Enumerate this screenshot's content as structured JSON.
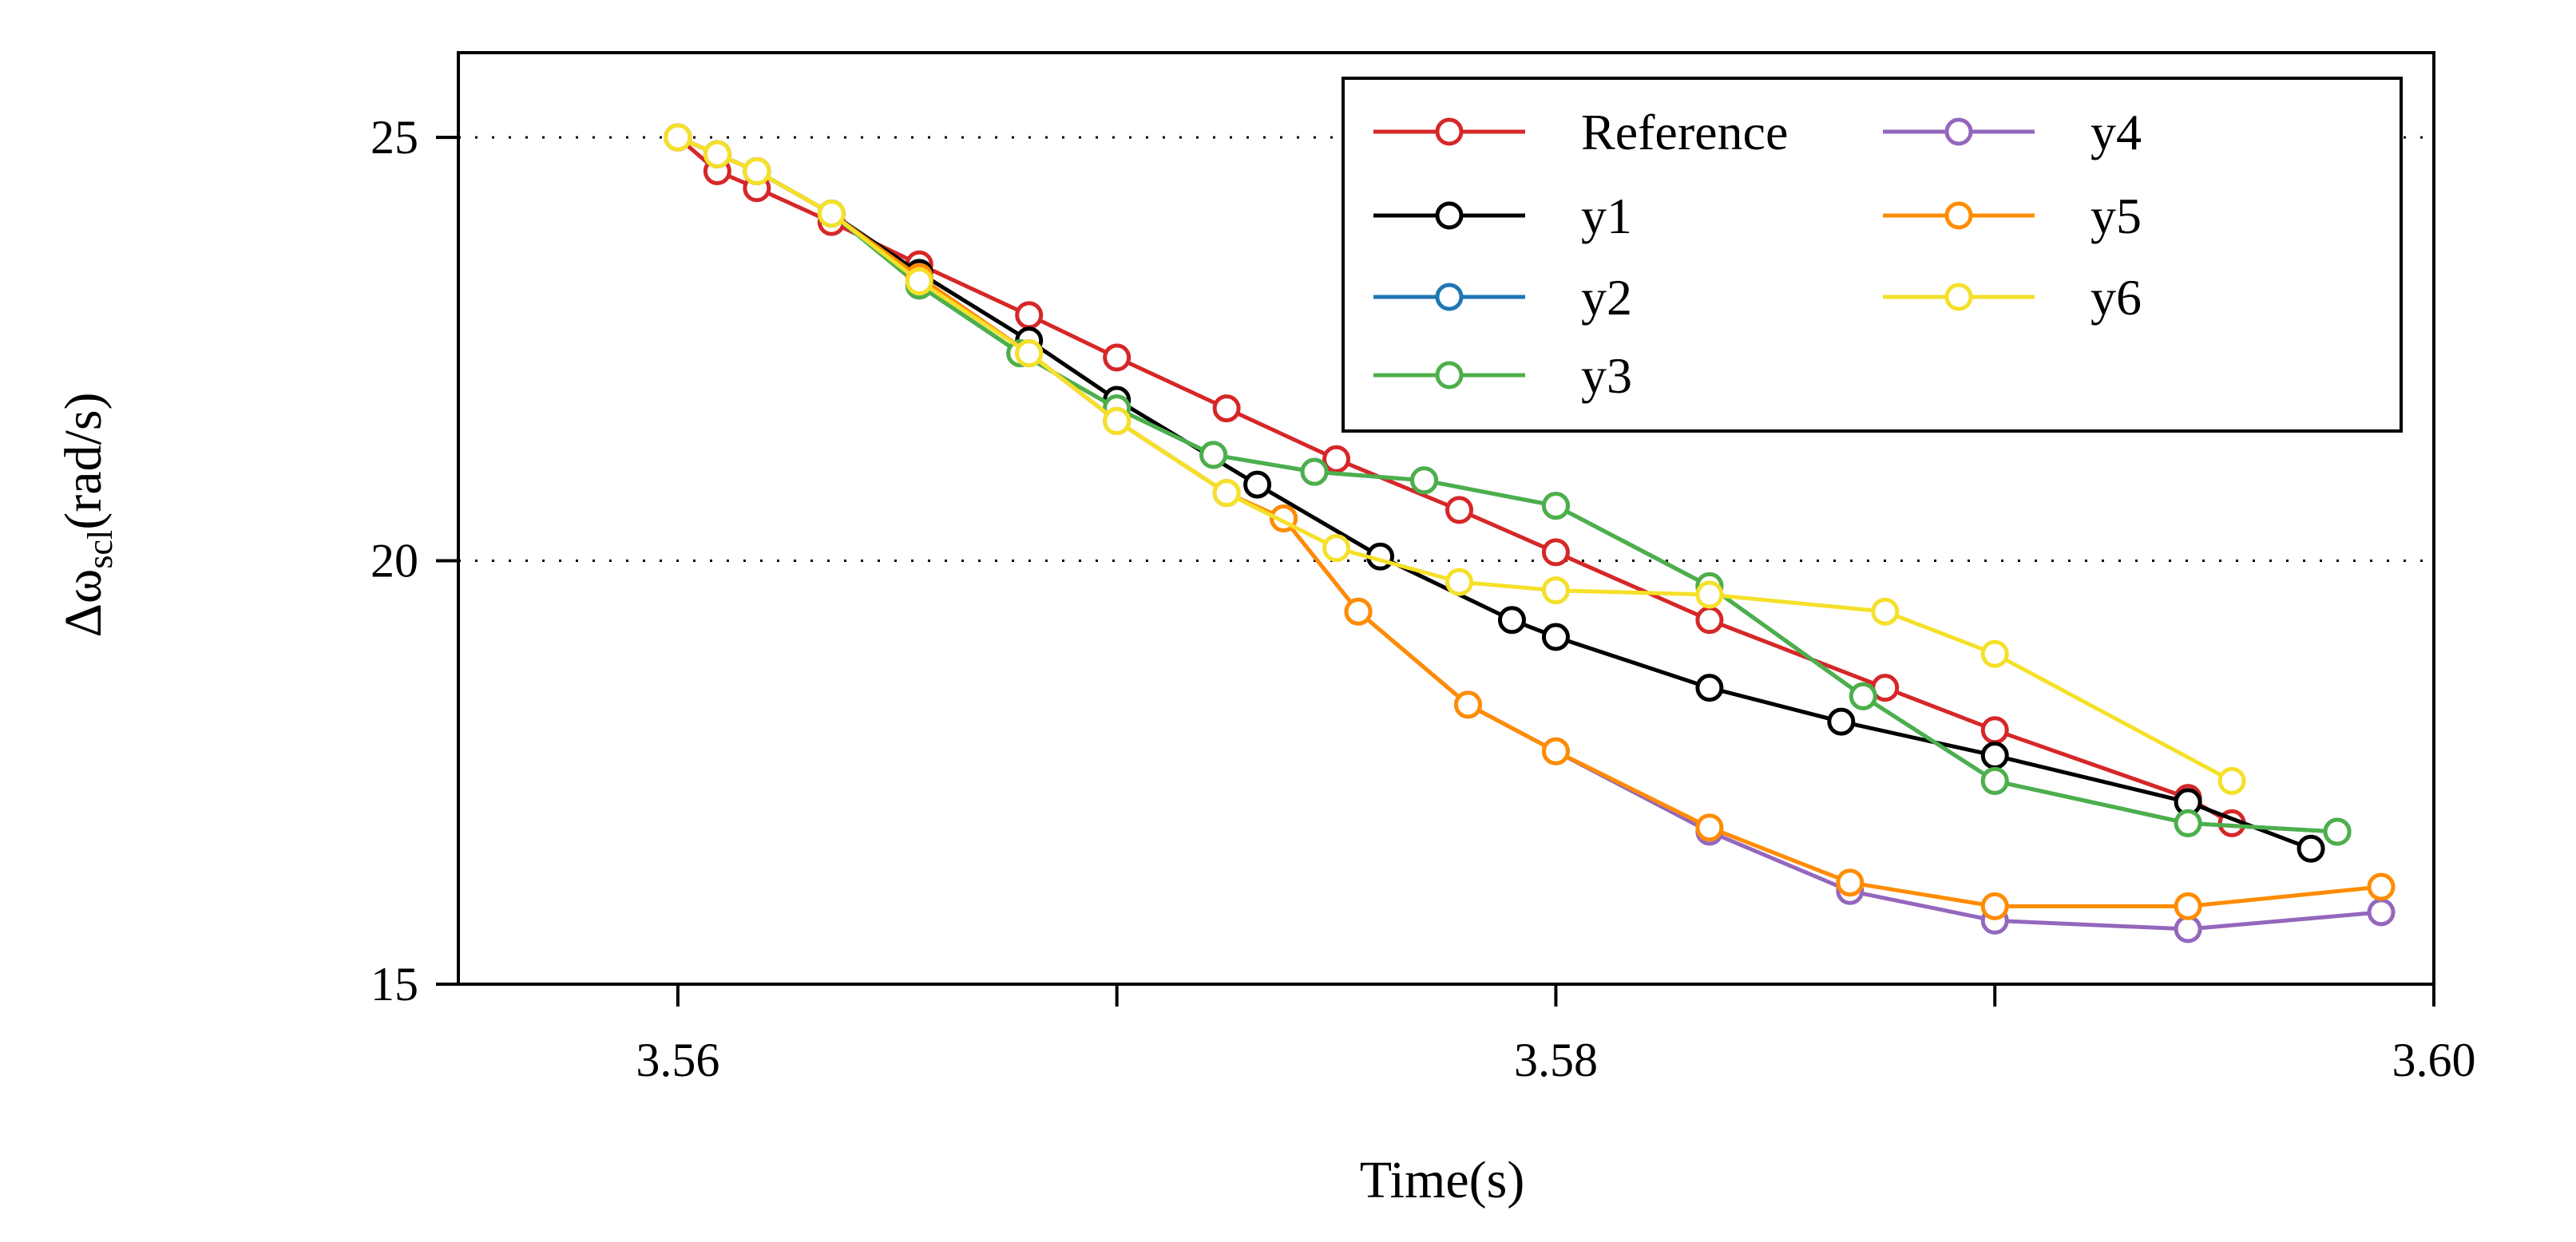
{
  "chart_data": {
    "type": "line",
    "title": "",
    "xlabel": "Time(s)",
    "ylabel": "Δω",
    "ylabel_sub": "scl",
    "ylabel_unit": "(rad/s)",
    "xlim": [
      3.555,
      3.6
    ],
    "ylim": [
      15,
      26
    ],
    "xticks": [
      3.56,
      3.58,
      3.6
    ],
    "xtick_labels": [
      "3.56",
      "3.58",
      "3.60"
    ],
    "yticks": [
      15,
      20,
      25
    ],
    "ytick_labels": [
      "15",
      "20",
      "25"
    ],
    "minor_xticks": [
      3.57,
      3.59
    ],
    "minor_yticks": [],
    "grid_lines_y": [
      20,
      25
    ],
    "legend_position": "top-right",
    "legend_columns": 2,
    "series": [
      {
        "name": "Reference",
        "color": "#d62728",
        "x": [
          3.56,
          3.5609,
          3.5618,
          3.5635,
          3.5655,
          3.568,
          3.57,
          3.5725,
          3.575,
          3.5778,
          3.58,
          3.5835,
          3.5875,
          3.59,
          3.5944,
          3.5954
        ],
        "y": [
          25.0,
          24.6,
          24.4,
          24.0,
          23.5,
          22.9,
          22.4,
          21.8,
          21.2,
          20.6,
          20.1,
          19.3,
          18.5,
          18.0,
          17.2,
          16.9
        ]
      },
      {
        "name": "y1",
        "color": "#000000",
        "x": [
          3.56,
          3.5609,
          3.5618,
          3.5635,
          3.5655,
          3.568,
          3.57,
          3.5732,
          3.576,
          3.579,
          3.58,
          3.5835,
          3.5865,
          3.59,
          3.5944,
          3.5972
        ],
        "y": [
          25.0,
          24.8,
          24.6,
          24.1,
          23.4,
          22.6,
          21.9,
          20.9,
          20.05,
          19.3,
          19.1,
          18.5,
          18.1,
          17.7,
          17.15,
          16.6
        ]
      },
      {
        "name": "y2",
        "color": "#1f77b4",
        "x": [
          3.56,
          3.5609,
          3.5618,
          3.5635,
          3.5655,
          3.5678,
          3.57,
          3.5722,
          3.5745,
          3.577,
          3.58,
          3.5835,
          3.587,
          3.59,
          3.5944,
          3.5978
        ],
        "y": [
          25.0,
          24.8,
          24.6,
          24.1,
          23.25,
          22.45,
          21.8,
          21.25,
          21.05,
          20.95,
          20.65,
          19.7,
          18.4,
          17.4,
          16.9,
          16.8
        ]
      },
      {
        "name": "y3",
        "color": "#4daf4a",
        "x": [
          3.56,
          3.5609,
          3.5618,
          3.5635,
          3.5655,
          3.5678,
          3.57,
          3.5722,
          3.5745,
          3.577,
          3.58,
          3.5835,
          3.587,
          3.59,
          3.5944,
          3.5978
        ],
        "y": [
          25.0,
          24.8,
          24.6,
          24.1,
          23.25,
          22.45,
          21.8,
          21.25,
          21.05,
          20.95,
          20.65,
          19.7,
          18.4,
          17.4,
          16.9,
          16.8
        ]
      },
      {
        "name": "y4",
        "color": "#9467bd",
        "x": [
          3.56,
          3.5609,
          3.5618,
          3.5635,
          3.5655,
          3.568,
          3.57,
          3.5725,
          3.5738,
          3.5755,
          3.578,
          3.58,
          3.5835,
          3.5867,
          3.59,
          3.5944,
          3.5988
        ],
        "y": [
          25.0,
          24.8,
          24.6,
          24.1,
          23.35,
          22.45,
          21.65,
          20.8,
          20.5,
          19.4,
          18.3,
          17.75,
          16.8,
          16.1,
          15.75,
          15.65,
          15.85
        ]
      },
      {
        "name": "y5",
        "color": "#ff8c00",
        "x": [
          3.56,
          3.5609,
          3.5618,
          3.5635,
          3.5655,
          3.568,
          3.57,
          3.5725,
          3.5738,
          3.5755,
          3.578,
          3.58,
          3.5835,
          3.5867,
          3.59,
          3.5944,
          3.5988
        ],
        "y": [
          25.0,
          24.8,
          24.6,
          24.1,
          23.35,
          22.45,
          21.65,
          20.8,
          20.5,
          19.4,
          18.3,
          17.75,
          16.85,
          16.2,
          15.92,
          15.92,
          16.15
        ]
      },
      {
        "name": "y6",
        "color": "#f5e02a",
        "x": [
          3.56,
          3.5609,
          3.5618,
          3.5635,
          3.5655,
          3.568,
          3.57,
          3.5725,
          3.575,
          3.5778,
          3.58,
          3.5835,
          3.5875,
          3.59,
          3.5954
        ],
        "y": [
          25.0,
          24.8,
          24.6,
          24.1,
          23.3,
          22.45,
          21.65,
          20.8,
          20.15,
          19.75,
          19.65,
          19.6,
          19.4,
          18.9,
          17.4
        ]
      }
    ]
  }
}
